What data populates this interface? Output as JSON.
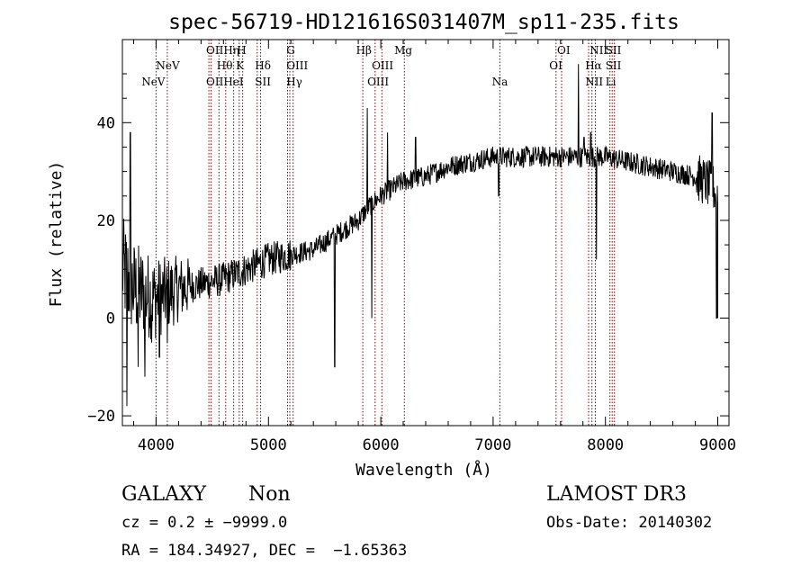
{
  "chart_data": {
    "type": "line",
    "title": "spec-56719-HD121616S031407M_sp11-235.fits",
    "xlabel": "Wavelength (Å)",
    "ylabel": "Flux (relative)",
    "xlim": [
      3700,
      9100
    ],
    "ylim": [
      -22,
      57
    ],
    "xticks": [
      4000,
      5000,
      6000,
      7000,
      8000,
      9000
    ],
    "yticks": [
      -20,
      0,
      20,
      40
    ],
    "continuum": {
      "x": [
        3700,
        3800,
        4000,
        4200,
        4400,
        4600,
        4800,
        5000,
        5200,
        5400,
        5600,
        5800,
        5900,
        6000,
        6200,
        6400,
        6600,
        6800,
        7000,
        7200,
        7400,
        7600,
        7800,
        8000,
        8200,
        8400,
        8600,
        8800,
        8950,
        9000
      ],
      "y": [
        10,
        6,
        4,
        6,
        7,
        8,
        10,
        12,
        13,
        14,
        17,
        20,
        23,
        25,
        28,
        29,
        31,
        32,
        33,
        33,
        33,
        33,
        33,
        33,
        32,
        31,
        30,
        29,
        27,
        25
      ]
    },
    "features": [
      {
        "x": 3740,
        "y": -18
      },
      {
        "x": 3770,
        "y": 38
      },
      {
        "x": 3840,
        "y": -10
      },
      {
        "x": 3900,
        "y": -12
      },
      {
        "x": 3960,
        "y": -5
      },
      {
        "x": 4030,
        "y": -8
      },
      {
        "x": 4100,
        "y": -5
      },
      {
        "x": 5590,
        "y": -10
      },
      {
        "x": 5880,
        "y": 43
      },
      {
        "x": 5920,
        "y": 0
      },
      {
        "x": 6060,
        "y": 38
      },
      {
        "x": 6310,
        "y": 37
      },
      {
        "x": 7050,
        "y": 25
      },
      {
        "x": 7760,
        "y": 52
      },
      {
        "x": 7810,
        "y": 37
      },
      {
        "x": 7870,
        "y": 38
      },
      {
        "x": 7920,
        "y": 12
      },
      {
        "x": 8950,
        "y": 42
      },
      {
        "x": 8990,
        "y": 0
      }
    ],
    "lines": [
      {
        "w": 4000,
        "names": [
          "NeV"
        ]
      },
      {
        "w": 4100,
        "names": [
          "NeV"
        ]
      },
      {
        "w": 4470,
        "names": [
          "OII"
        ]
      },
      {
        "w": 4490,
        "names": [
          "OII"
        ]
      },
      {
        "w": 4560,
        "names": [
          "Hη"
        ]
      },
      {
        "w": 4620,
        "names": [
          "Hθ"
        ]
      },
      {
        "w": 4690,
        "names": [
          "HeI"
        ]
      },
      {
        "w": 4740,
        "names": [
          "K"
        ]
      },
      {
        "w": 4770,
        "names": [
          "H"
        ]
      },
      {
        "w": 4900,
        "names": [
          "Hδ"
        ]
      },
      {
        "w": 4930,
        "names": [
          "SII"
        ]
      },
      {
        "w": 5170,
        "names": [
          "Hγ"
        ]
      },
      {
        "w": 5190,
        "names": [
          "G"
        ]
      },
      {
        "w": 5220,
        "names": [
          "OIII"
        ]
      },
      {
        "w": 5840,
        "names": [
          "Hβ"
        ]
      },
      {
        "w": 5950,
        "names": [
          "OIII"
        ]
      },
      {
        "w": 6010,
        "names": [
          "OIII"
        ]
      },
      {
        "w": 6210,
        "names": [
          "Mg"
        ]
      },
      {
        "w": 7060,
        "names": [
          "Na"
        ]
      },
      {
        "w": 7560,
        "names": [
          "OI"
        ]
      },
      {
        "w": 7610,
        "names": [
          "OI"
        ]
      },
      {
        "w": 7850,
        "names": [
          "NII"
        ]
      },
      {
        "w": 7880,
        "names": [
          "Hα"
        ]
      },
      {
        "w": 7910,
        "names": [
          "NII"
        ]
      },
      {
        "w": 8040,
        "names": [
          "SII"
        ]
      },
      {
        "w": 8060,
        "names": [
          "Li"
        ]
      },
      {
        "w": 8080,
        "names": [
          "SII"
        ]
      }
    ],
    "labels": [
      {
        "text": "NeV",
        "x": 4000,
        "row": 2,
        "anchor": "start"
      },
      {
        "text": "NeV",
        "x": 3870,
        "row": 3,
        "anchor": "start"
      },
      {
        "text": "OIIHη",
        "x": 4445,
        "row": 1,
        "anchor": "start"
      },
      {
        "text": "H",
        "x": 4720,
        "row": 1,
        "anchor": "start"
      },
      {
        "text": "Hθ",
        "x": 4540,
        "row": 2,
        "anchor": "start"
      },
      {
        "text": "K",
        "x": 4710,
        "row": 2,
        "anchor": "start"
      },
      {
        "text": "Hδ",
        "x": 4880,
        "row": 2,
        "anchor": "start"
      },
      {
        "text": "OIIHeI",
        "x": 4445,
        "row": 3,
        "anchor": "start"
      },
      {
        "text": "SII",
        "x": 4880,
        "row": 3,
        "anchor": "start"
      },
      {
        "text": "G",
        "x": 5160,
        "row": 1,
        "anchor": "start"
      },
      {
        "text": "OIII",
        "x": 5160,
        "row": 2,
        "anchor": "start"
      },
      {
        "text": "Hγ",
        "x": 5160,
        "row": 3,
        "anchor": "start"
      },
      {
        "text": "Hβ",
        "x": 5780,
        "row": 1,
        "anchor": "start"
      },
      {
        "text": "OIII",
        "x": 5920,
        "row": 2,
        "anchor": "start"
      },
      {
        "text": "OIII",
        "x": 5880,
        "row": 3,
        "anchor": "start"
      },
      {
        "text": "Mg",
        "x": 6120,
        "row": 1,
        "anchor": "start"
      },
      {
        "text": "Na",
        "x": 6990,
        "row": 3,
        "anchor": "start"
      },
      {
        "text": "OI",
        "x": 7570,
        "row": 1,
        "anchor": "start"
      },
      {
        "text": "OI",
        "x": 7500,
        "row": 2,
        "anchor": "start"
      },
      {
        "text": "NII",
        "x": 7860,
        "row": 1,
        "anchor": "start"
      },
      {
        "text": "SII",
        "x": 8000,
        "row": 1,
        "anchor": "start"
      },
      {
        "text": "Hα",
        "x": 7820,
        "row": 2,
        "anchor": "start"
      },
      {
        "text": "SII",
        "x": 8000,
        "row": 2,
        "anchor": "start"
      },
      {
        "text": "NII",
        "x": 7820,
        "row": 3,
        "anchor": "start"
      },
      {
        "text": "Li",
        "x": 8000,
        "row": 3,
        "anchor": "start"
      }
    ]
  },
  "info": {
    "class": "GALAXY",
    "subclass": "Non",
    "cz": "cz = 0.2 ± −9999.0",
    "radec": "RA = 184.34927, DEC =  −1.65363",
    "survey": "LAMOST DR3",
    "obsdate": "Obs-Date: 20140302"
  },
  "colors": {
    "line": "#8b0000",
    "spectrum": "#000000"
  }
}
